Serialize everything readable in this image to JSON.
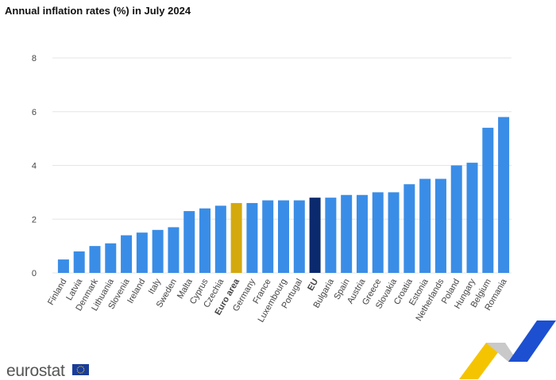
{
  "chart_data": {
    "type": "bar",
    "title": "Annual inflation rates (%) in July 2024",
    "categories": [
      "Finland",
      "Latvia",
      "Denmark",
      "Lithuania",
      "Slovenia",
      "Ireland",
      "Italy",
      "Sweden",
      "Malta",
      "Cyprus",
      "Czechia",
      "Euro area",
      "Germany",
      "France",
      "Luxembourg",
      "Portugal",
      "EU",
      "Bulgaria",
      "Spain",
      "Austria",
      "Greece",
      "Slovakia",
      "Croatia",
      "Estonia",
      "Netherlands",
      "Poland",
      "Hungary",
      "Belgium",
      "Romania"
    ],
    "values": [
      0.5,
      0.8,
      1.0,
      1.1,
      1.4,
      1.5,
      1.6,
      1.7,
      2.3,
      2.4,
      2.5,
      2.6,
      2.6,
      2.7,
      2.7,
      2.7,
      2.8,
      2.8,
      2.9,
      2.9,
      3.0,
      3.0,
      3.3,
      3.5,
      3.5,
      4.0,
      4.1,
      5.4,
      5.8
    ],
    "color": "#3a8de6",
    "colors": [
      "#3a8de6",
      "#3a8de6",
      "#3a8de6",
      "#3a8de6",
      "#3a8de6",
      "#3a8de6",
      "#3a8de6",
      "#3a8de6",
      "#3a8de6",
      "#3a8de6",
      "#3a8de6",
      "#d4a90e",
      "#3a8de6",
      "#3a8de6",
      "#3a8de6",
      "#3a8de6",
      "#0b2a6e",
      "#3a8de6",
      "#3a8de6",
      "#3a8de6",
      "#3a8de6",
      "#3a8de6",
      "#3a8de6",
      "#3a8de6",
      "#3a8de6",
      "#3a8de6",
      "#3a8de6",
      "#3a8de6",
      "#3a8de6"
    ],
    "ylim": [
      0,
      8
    ],
    "yticks": [
      0,
      2,
      4,
      6,
      8
    ],
    "grid": true
  },
  "logo": "eurostat"
}
